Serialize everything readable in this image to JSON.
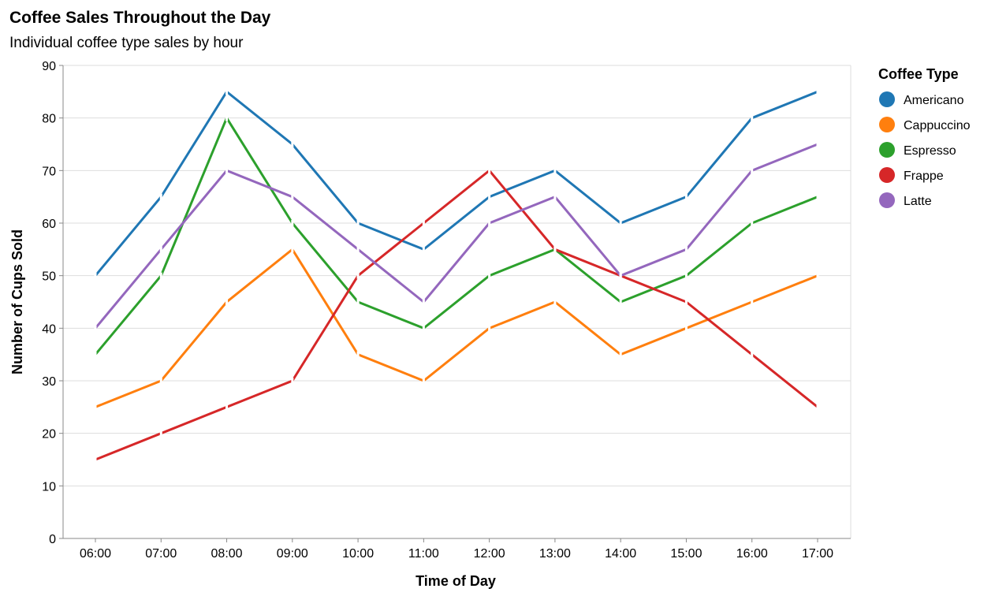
{
  "chart_data": {
    "type": "line",
    "title": "Coffee Sales Throughout the Day",
    "subtitle": "Individual coffee type sales by hour",
    "xlabel": "Time of Day",
    "ylabel": "Number of Cups Sold",
    "ylim": [
      0,
      90
    ],
    "yticks": [
      0,
      10,
      20,
      30,
      40,
      50,
      60,
      70,
      80,
      90
    ],
    "grid": true,
    "legend_title": "Coffee Type",
    "legend_position": "right",
    "categories": [
      "06:00",
      "07:00",
      "08:00",
      "09:00",
      "10:00",
      "11:00",
      "12:00",
      "13:00",
      "14:00",
      "15:00",
      "16:00",
      "17:00"
    ],
    "series": [
      {
        "name": "Americano",
        "color": "#1f77b4",
        "values": [
          50,
          65,
          85,
          75,
          60,
          55,
          65,
          70,
          60,
          65,
          80,
          85
        ]
      },
      {
        "name": "Cappuccino",
        "color": "#ff7f0e",
        "values": [
          25,
          30,
          45,
          55,
          35,
          30,
          40,
          45,
          35,
          40,
          45,
          50
        ]
      },
      {
        "name": "Espresso",
        "color": "#2ca02c",
        "values": [
          35,
          50,
          80,
          60,
          45,
          40,
          50,
          55,
          45,
          50,
          60,
          65
        ]
      },
      {
        "name": "Frappe",
        "color": "#d62728",
        "values": [
          15,
          20,
          25,
          30,
          50,
          60,
          70,
          55,
          50,
          45,
          35,
          25
        ]
      },
      {
        "name": "Latte",
        "color": "#9467bd",
        "values": [
          40,
          55,
          70,
          65,
          55,
          45,
          60,
          65,
          50,
          55,
          70,
          75
        ]
      }
    ]
  }
}
